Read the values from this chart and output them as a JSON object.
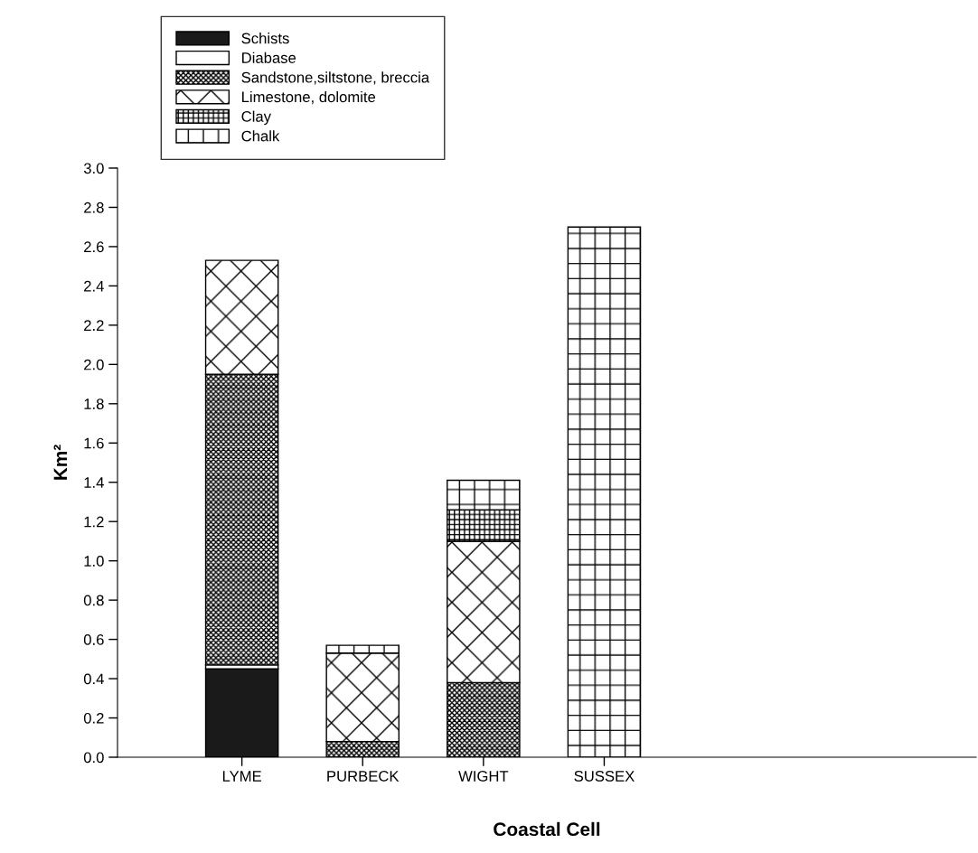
{
  "chart_data": {
    "type": "bar",
    "stacked": true,
    "xlabel": "Coastal Cell",
    "ylabel": "Km²",
    "categories": [
      "LYME",
      "PURBECK",
      "WIGHT",
      "SUSSEX"
    ],
    "series": [
      {
        "name": "Schists",
        "color": "#1a1a1a",
        "values": [
          0.45,
          0,
          0,
          0
        ]
      },
      {
        "name": "Diabase",
        "color": "#ffffff",
        "values": [
          0.02,
          0,
          0,
          0
        ]
      },
      {
        "name": "Sandstone,siltstone, breccia",
        "color": "#000000",
        "values": [
          1.48,
          0.08,
          0.38,
          0
        ]
      },
      {
        "name": "Limestone, dolomite",
        "color": "#000000",
        "values": [
          0.58,
          0.45,
          0.72,
          0
        ]
      },
      {
        "name": "Clay",
        "color": "#000000",
        "values": [
          0,
          0,
          0.16,
          0
        ]
      },
      {
        "name": "Chalk",
        "color": "#000000",
        "values": [
          0,
          0.04,
          0.15,
          2.7
        ]
      }
    ],
    "ylim": [
      0,
      3.0
    ],
    "yticks": [
      {
        "value": 0,
        "label": "0.0"
      },
      {
        "value": 0.2,
        "label": "0.2"
      },
      {
        "value": 0.4,
        "label": "0.4"
      },
      {
        "value": 0.6,
        "label": "0.6"
      },
      {
        "value": 0.8,
        "label": "0.8"
      },
      {
        "value": 1.0,
        "label": "1.0"
      },
      {
        "value": 1.2,
        "label": "1.2"
      },
      {
        "value": 1.4,
        "label": "1.4"
      },
      {
        "value": 1.6,
        "label": "1.6"
      },
      {
        "value": 1.8,
        "label": "1.8"
      },
      {
        "value": 2.0,
        "label": "2.0"
      },
      {
        "value": 2.2,
        "label": "2.2"
      },
      {
        "value": 2.4,
        "label": "2.4"
      },
      {
        "value": 2.6,
        "label": "2.6"
      },
      {
        "value": 2.8,
        "label": "2.8"
      },
      {
        "value": 3.0,
        "label": "3.0"
      }
    ],
    "grid": false,
    "legend": "top left"
  }
}
